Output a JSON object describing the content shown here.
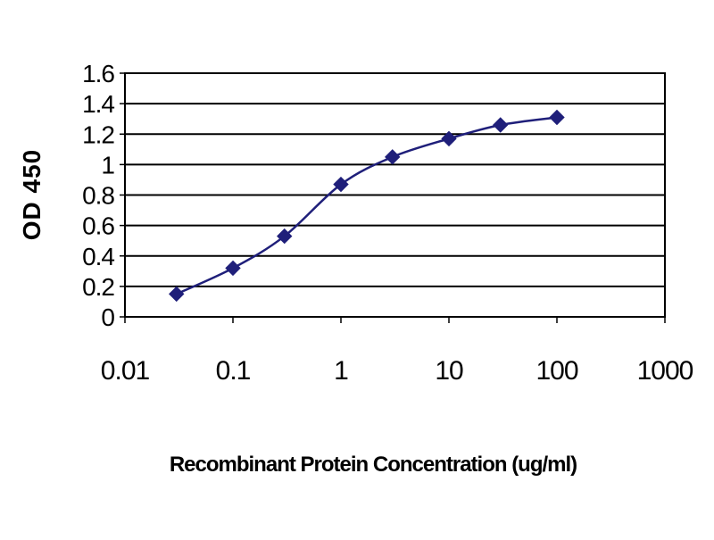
{
  "chart_data": {
    "type": "line",
    "title": "",
    "xlabel": "Recombinant Protein Concentration (ug/ml)",
    "ylabel": "OD 450",
    "x_scale": "log",
    "xlim": [
      0.01,
      1000
    ],
    "ylim": [
      0,
      1.6
    ],
    "x_ticks": [
      "0.01",
      "0.1",
      "1",
      "10",
      "100",
      "1000"
    ],
    "y_ticks": [
      "0",
      "0.2",
      "0.4",
      "0.6",
      "0.8",
      "1",
      "1.2",
      "1.4",
      "1.6"
    ],
    "grid": "horizontal",
    "legend": "none",
    "series_color": "#1f1f7a",
    "series": [
      {
        "x": [
          0.03,
          0.1,
          0.3,
          1,
          3,
          10,
          30,
          100
        ],
        "y": [
          0.15,
          0.32,
          0.53,
          0.87,
          1.05,
          1.17,
          1.26,
          1.31
        ]
      }
    ]
  }
}
